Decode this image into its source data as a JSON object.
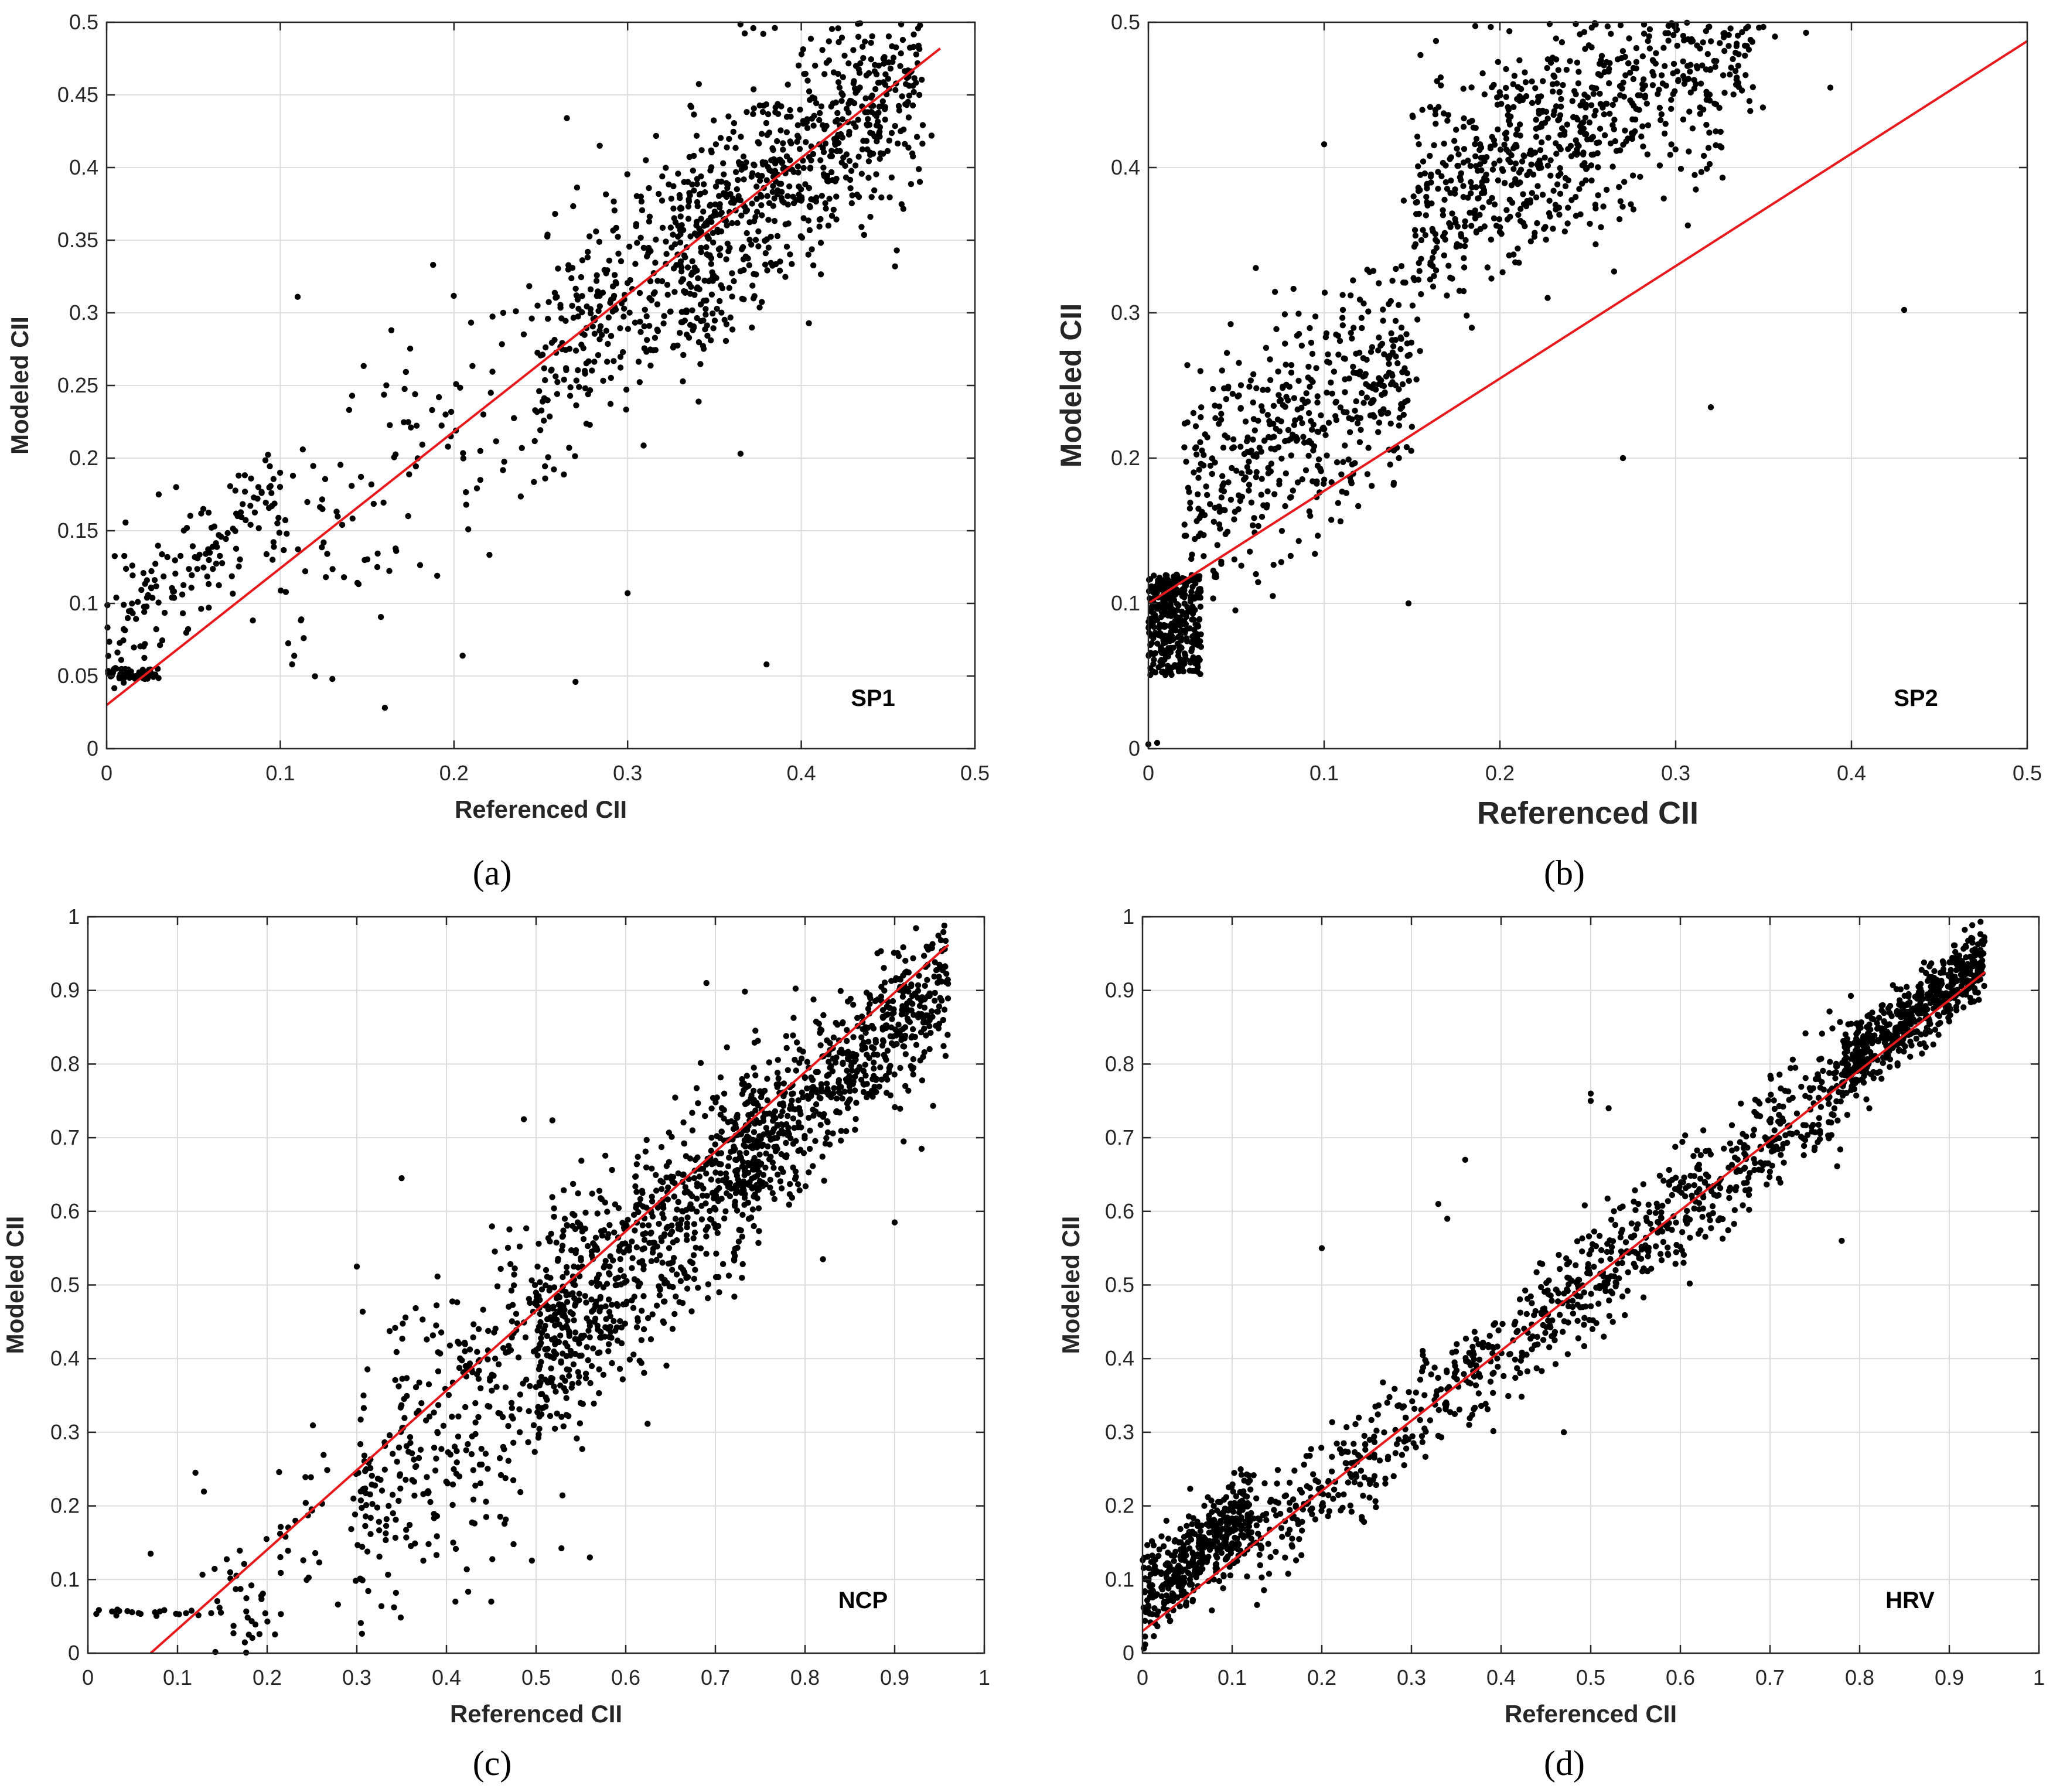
{
  "chart_data": [
    {
      "id": "a",
      "type": "scatter",
      "caption": "(a)",
      "panel_label": "SP1",
      "xlabel": "Referenced CII",
      "ylabel": "Modeled CII",
      "xlim": [
        0,
        0.5
      ],
      "ylim": [
        0,
        0.5
      ],
      "xticks": [
        0,
        0.1,
        0.2,
        0.3,
        0.4,
        0.5
      ],
      "yticks": [
        0,
        0.05,
        0.1,
        0.15,
        0.2,
        0.25,
        0.3,
        0.35,
        0.4,
        0.45,
        0.5
      ],
      "grid": true,
      "fit_line": {
        "x": [
          0,
          0.48
        ],
        "y": [
          0.03,
          0.482
        ],
        "color": "#e8191c"
      },
      "point_color": "#000000",
      "clusters": [
        {
          "n": 60,
          "x": [
            0,
            0.03
          ],
          "y": [
            0.048,
            0.055
          ],
          "spread": "uniform"
        },
        {
          "n": 160,
          "x": [
            0,
            0.1
          ],
          "y_from_fit": [
            0.05,
            0.9,
            0.02
          ]
        },
        {
          "n": 120,
          "x": [
            0.1,
            0.25
          ],
          "y_from_fit": [
            0.0,
            0.95,
            0.045
          ]
        },
        {
          "n": 300,
          "x": [
            0.25,
            0.35
          ],
          "y_from_fit": [
            0.0,
            0.95,
            0.04
          ]
        },
        {
          "n": 700,
          "x": [
            0.33,
            0.47
          ],
          "y_from_fit": [
            0.0,
            0.95,
            0.04
          ]
        }
      ],
      "points": [
        [
          0.27,
          0.046
        ],
        [
          0.38,
          0.058
        ],
        [
          0.3,
          0.107
        ],
        [
          0.11,
          0.311
        ],
        [
          0.188,
          0.333
        ],
        [
          0.265,
          0.434
        ],
        [
          0.365,
          0.203
        ],
        [
          0.04,
          0.18
        ],
        [
          0.03,
          0.175
        ],
        [
          0.076,
          0.188
        ],
        [
          0.13,
          0.048
        ],
        [
          0.205,
          0.064
        ],
        [
          0.475,
          0.422
        ],
        [
          0.455,
          0.343
        ]
      ]
    },
    {
      "id": "b",
      "type": "scatter",
      "caption": "(b)",
      "panel_label": "SP2",
      "xlabel": "Referenced CII",
      "ylabel": "Modeled CII",
      "xlim": [
        0,
        0.5
      ],
      "ylim": [
        0,
        0.5
      ],
      "xticks": [
        0,
        0.1,
        0.2,
        0.3,
        0.4,
        0.5
      ],
      "yticks": [
        0,
        0.1,
        0.2,
        0.3,
        0.4,
        0.5
      ],
      "grid": true,
      "fit_line": {
        "x": [
          0,
          0.5
        ],
        "y": [
          0.1,
          0.487
        ],
        "color": "#e8191c"
      },
      "point_color": "#000000",
      "clusters": [
        {
          "n": 350,
          "x": [
            0,
            0.03
          ],
          "y": [
            0.05,
            0.12
          ],
          "spread": "uniform"
        },
        {
          "n": 500,
          "x": [
            0.02,
            0.15
          ],
          "y_from_fit": [
            0.06,
            0.85,
            0.04
          ]
        },
        {
          "n": 900,
          "x": [
            0.15,
            0.35
          ],
          "y_from_fit": [
            0.15,
            0.7,
            0.04
          ]
        },
        {
          "n": 500,
          "x": [
            0.35,
            0.5
          ],
          "y_from_fit": [
            0.2,
            0.55,
            0.03
          ]
        }
      ],
      "points": [
        [
          0.0,
          0.003
        ],
        [
          0.005,
          0.004
        ],
        [
          0.1,
          0.416
        ],
        [
          0.148,
          0.1
        ],
        [
          0.27,
          0.2
        ],
        [
          0.32,
          0.235
        ],
        [
          0.43,
          0.302
        ],
        [
          0.388,
          0.455
        ]
      ]
    },
    {
      "id": "c",
      "type": "scatter",
      "caption": "(c)",
      "panel_label": "NCP",
      "xlabel": "Referenced CII",
      "ylabel": "Modeled CII",
      "xlim": [
        0,
        1
      ],
      "ylim": [
        0,
        1
      ],
      "xticks": [
        0,
        0.1,
        0.2,
        0.3,
        0.4,
        0.5,
        0.6,
        0.7,
        0.8,
        0.9,
        1
      ],
      "yticks": [
        0,
        0.1,
        0.2,
        0.3,
        0.4,
        0.5,
        0.6,
        0.7,
        0.8,
        0.9,
        1
      ],
      "grid": true,
      "fit_line": {
        "x": [
          0.07,
          0.96
        ],
        "y": [
          0.0,
          0.962
        ],
        "color": "#e8191c"
      },
      "point_color": "#000000",
      "clusters": [
        {
          "n": 20,
          "x": [
            0,
            0.12
          ],
          "y": [
            0.05,
            0.06
          ],
          "spread": "uniform"
        },
        {
          "n": 80,
          "x": [
            0.12,
            0.3
          ],
          "y_from_fit": [
            -0.05,
            1.05,
            0.08
          ]
        },
        {
          "n": 400,
          "x": [
            0.3,
            0.55
          ],
          "y_from_fit": [
            -0.05,
            1.05,
            0.1
          ]
        },
        {
          "n": 700,
          "x": [
            0.5,
            0.75
          ],
          "y_from_fit": [
            -0.05,
            1.05,
            0.07
          ]
        },
        {
          "n": 650,
          "x": [
            0.72,
            0.96
          ],
          "y_from_fit": [
            -0.05,
            1.05,
            0.05
          ]
        }
      ],
      "points": [
        [
          0.35,
          0.645
        ],
        [
          0.3,
          0.525
        ],
        [
          0.07,
          0.135
        ],
        [
          0.12,
          0.245
        ],
        [
          0.9,
          0.585
        ],
        [
          0.91,
          0.695
        ],
        [
          0.93,
          0.685
        ],
        [
          0.82,
          0.535
        ],
        [
          0.56,
          0.13
        ],
        [
          0.45,
          0.07
        ],
        [
          0.41,
          0.07
        ],
        [
          0.69,
          0.91
        ]
      ]
    },
    {
      "id": "d",
      "type": "scatter",
      "caption": "(d)",
      "panel_label": "HRV",
      "xlabel": "Referenced CII",
      "ylabel": "Modeled CII",
      "xlim": [
        0,
        1
      ],
      "ylim": [
        0,
        1
      ],
      "xticks": [
        0,
        0.1,
        0.2,
        0.3,
        0.4,
        0.5,
        0.6,
        0.7,
        0.8,
        0.9,
        1
      ],
      "yticks": [
        0,
        0.1,
        0.2,
        0.3,
        0.4,
        0.5,
        0.6,
        0.7,
        0.8,
        0.9,
        1
      ],
      "grid": true,
      "fit_line": {
        "x": [
          0,
          0.94
        ],
        "y": [
          0.03,
          0.925
        ],
        "color": "#e8191c"
      },
      "point_color": "#000000",
      "clusters": [
        {
          "n": 450,
          "x": [
            0,
            0.12
          ],
          "y_from_fit": [
            0.045,
            0.95,
            0.03
          ]
        },
        {
          "n": 450,
          "x": [
            0.12,
            0.5
          ],
          "y_from_fit": [
            0.0,
            1.0,
            0.035
          ]
        },
        {
          "n": 450,
          "x": [
            0.5,
            0.8
          ],
          "y_from_fit": [
            0.0,
            1.0,
            0.04
          ]
        },
        {
          "n": 600,
          "x": [
            0.78,
            0.94
          ],
          "y_from_fit": [
            0.02,
            1.0,
            0.025
          ]
        }
      ],
      "points": [
        [
          0.2,
          0.55
        ],
        [
          0.36,
          0.67
        ],
        [
          0.33,
          0.61
        ],
        [
          0.34,
          0.59
        ],
        [
          0.5,
          0.75
        ],
        [
          0.5,
          0.76
        ],
        [
          0.52,
          0.74
        ],
        [
          0.78,
          0.56
        ],
        [
          0.47,
          0.3
        ]
      ]
    }
  ]
}
